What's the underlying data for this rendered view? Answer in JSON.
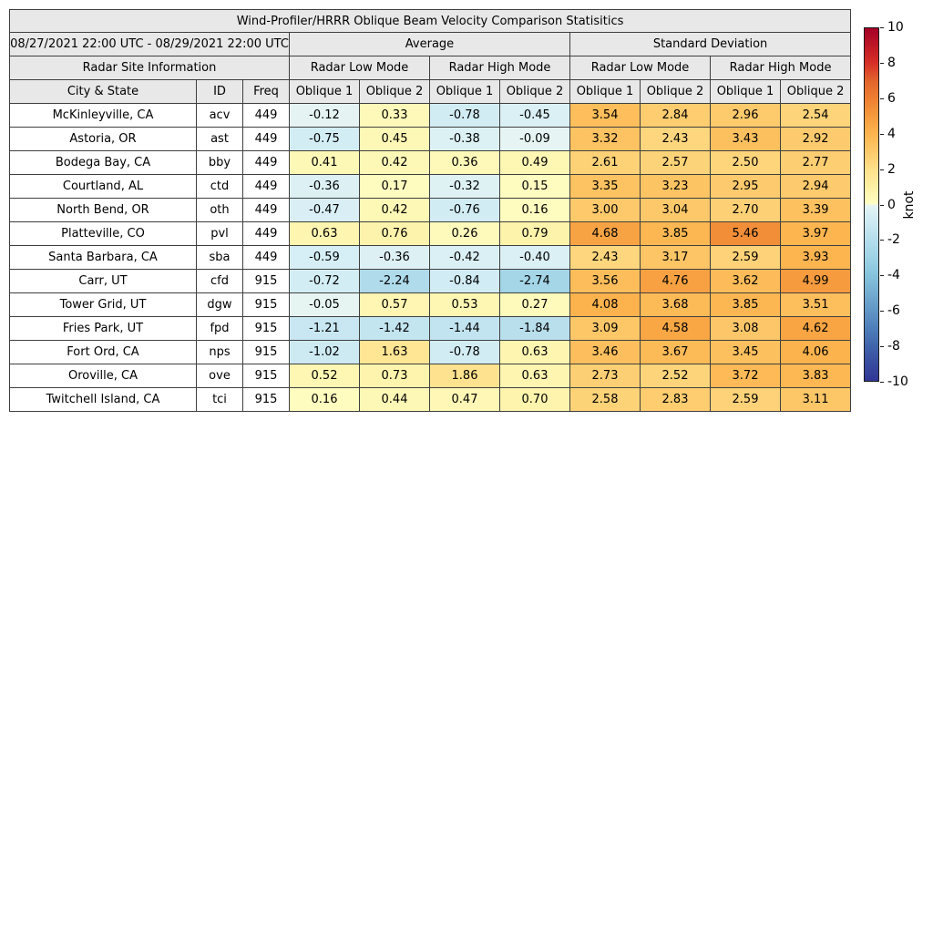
{
  "table": {
    "title": "Wind-Profiler/HRRR Oblique Beam Velocity Comparison Statisitics",
    "date_range": "08/27/2021 22:00 UTC - 08/29/2021 22:00 UTC",
    "groups": {
      "average": "Average",
      "std": "Standard Deviation"
    },
    "subgroups": {
      "site_info": "Radar Site Information",
      "low": "Radar Low Mode",
      "high": "Radar High Mode"
    },
    "columns": {
      "city": "City & State",
      "id": "ID",
      "freq": "Freq",
      "oblique1": "Oblique 1",
      "oblique2": "Oblique 2"
    }
  },
  "colorbar": {
    "label": "knot",
    "min": -10,
    "max": 10,
    "ticks": [
      10,
      8,
      6,
      4,
      2,
      0,
      -2,
      -4,
      -6,
      -8,
      -10
    ]
  },
  "colormap": {
    "warm": [
      [
        0,
        "#fffec4"
      ],
      [
        1,
        "#fdf0a4"
      ],
      [
        2,
        "#fee08b"
      ],
      [
        3,
        "#fdc96b"
      ],
      [
        4,
        "#fdb44e"
      ],
      [
        5,
        "#f69b3e"
      ],
      [
        6,
        "#ee7f31"
      ],
      [
        7,
        "#e2652c"
      ],
      [
        8,
        "#d73027"
      ],
      [
        10,
        "#a50026"
      ]
    ],
    "cool": [
      [
        0,
        "#e9f6f2"
      ],
      [
        -0.5,
        "#d8eff5"
      ],
      [
        -1,
        "#cdeaf3"
      ],
      [
        -2,
        "#b5ddec"
      ],
      [
        -3,
        "#9ed3e6"
      ],
      [
        -4,
        "#86c4dd"
      ],
      [
        -5,
        "#74add1"
      ],
      [
        -7,
        "#4f7fba"
      ],
      [
        -8.5,
        "#3b58a5"
      ],
      [
        -10,
        "#313695"
      ]
    ]
  },
  "chart_data": {
    "type": "table",
    "title": "Wind-Profiler/HRRR Oblique Beam Velocity Comparison Statisitics",
    "date_range": "08/27/2021 22:00 UTC - 08/29/2021 22:00 UTC",
    "column_groups": [
      "Average",
      "Standard Deviation"
    ],
    "column_subgroups": [
      "Radar Low Mode",
      "Radar High Mode"
    ],
    "value_columns": [
      "Average Low Mode Oblique 1",
      "Average Low Mode Oblique 2",
      "Average High Mode Oblique 1",
      "Average High Mode Oblique 2",
      "Std Dev Low Mode Oblique 1",
      "Std Dev Low Mode Oblique 2",
      "Std Dev High Mode Oblique 1",
      "Std Dev High Mode Oblique 2"
    ],
    "colorbar": {
      "label": "knot",
      "min": -10,
      "max": 10
    },
    "rows": [
      {
        "city": "McKinleyville, CA",
        "id": "acv",
        "freq": 449,
        "values": [
          -0.12,
          0.33,
          -0.78,
          -0.45,
          3.54,
          2.84,
          2.96,
          2.54
        ]
      },
      {
        "city": "Astoria, OR",
        "id": "ast",
        "freq": 449,
        "values": [
          -0.75,
          0.45,
          -0.38,
          -0.09,
          3.32,
          2.43,
          3.43,
          2.92
        ]
      },
      {
        "city": "Bodega Bay, CA",
        "id": "bby",
        "freq": 449,
        "values": [
          0.41,
          0.42,
          0.36,
          0.49,
          2.61,
          2.57,
          2.5,
          2.77
        ]
      },
      {
        "city": "Courtland, AL",
        "id": "ctd",
        "freq": 449,
        "values": [
          -0.36,
          0.17,
          -0.32,
          0.15,
          3.35,
          3.23,
          2.95,
          2.94
        ]
      },
      {
        "city": "North Bend, OR",
        "id": "oth",
        "freq": 449,
        "values": [
          -0.47,
          0.42,
          -0.76,
          0.16,
          3.0,
          3.04,
          2.7,
          3.39
        ]
      },
      {
        "city": "Platteville, CO",
        "id": "pvl",
        "freq": 449,
        "values": [
          0.63,
          0.76,
          0.26,
          0.79,
          4.68,
          3.85,
          5.46,
          3.97
        ]
      },
      {
        "city": "Santa Barbara, CA",
        "id": "sba",
        "freq": 449,
        "values": [
          -0.59,
          -0.36,
          -0.42,
          -0.4,
          2.43,
          3.17,
          2.59,
          3.93
        ]
      },
      {
        "city": "Carr, UT",
        "id": "cfd",
        "freq": 915,
        "values": [
          -0.72,
          -2.24,
          -0.84,
          -2.74,
          3.56,
          4.76,
          3.62,
          4.99
        ]
      },
      {
        "city": "Tower Grid, UT",
        "id": "dgw",
        "freq": 915,
        "values": [
          -0.05,
          0.57,
          0.53,
          0.27,
          4.08,
          3.68,
          3.85,
          3.51
        ]
      },
      {
        "city": "Fries Park, UT",
        "id": "fpd",
        "freq": 915,
        "values": [
          -1.21,
          -1.42,
          -1.44,
          -1.84,
          3.09,
          4.58,
          3.08,
          4.62
        ]
      },
      {
        "city": "Fort Ord, CA",
        "id": "nps",
        "freq": 915,
        "values": [
          -1.02,
          1.63,
          -0.78,
          0.63,
          3.46,
          3.67,
          3.45,
          4.06
        ]
      },
      {
        "city": "Oroville, CA",
        "id": "ove",
        "freq": 915,
        "values": [
          0.52,
          0.73,
          1.86,
          0.63,
          2.73,
          2.52,
          3.72,
          3.83
        ]
      },
      {
        "city": "Twitchell Island, CA",
        "id": "tci",
        "freq": 915,
        "values": [
          0.16,
          0.44,
          0.47,
          0.7,
          2.58,
          2.83,
          2.59,
          3.11
        ]
      }
    ]
  }
}
